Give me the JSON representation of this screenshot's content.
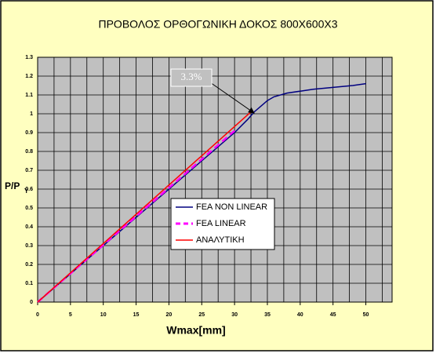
{
  "chart_data": {
    "type": "line",
    "title": "ΠΡΟΒΟΛΟΣ ΟΡΘΟΓΩΝΙΚΗ ΔΟΚΟΣ 800Χ600Χ3",
    "x_label": "Wmax[mm]",
    "y_label": "P/P",
    "y_label_subscript": "Y",
    "annotation": "3.3%",
    "xlim": [
      0,
      54
    ],
    "xticks": [
      0,
      5,
      10,
      15,
      20,
      25,
      30,
      35,
      40,
      45,
      50
    ],
    "xgrid_step": 2.5,
    "ylim": [
      0,
      1.3
    ],
    "yticks": [
      0,
      0.1,
      0.2,
      0.3,
      0.4,
      0.5,
      0.6,
      0.7,
      0.8,
      0.9,
      1,
      1.1,
      1.2,
      1.3
    ],
    "grid": true,
    "legend": "center",
    "series": [
      {
        "name": "FEA NON LINEAR",
        "color": "#000080",
        "dash": false,
        "x": [
          0,
          10,
          20,
          30,
          32,
          33,
          34,
          35,
          36,
          38,
          40,
          42,
          45,
          48,
          50
        ],
        "values": [
          0,
          0.3,
          0.6,
          0.9,
          0.97,
          1.01,
          1.04,
          1.07,
          1.09,
          1.11,
          1.12,
          1.13,
          1.14,
          1.15,
          1.16
        ]
      },
      {
        "name": "FEA LINEAR",
        "color": "#ff00ff",
        "dash": true,
        "x": [
          0,
          30
        ],
        "values": [
          0,
          0.91
        ]
      },
      {
        "name": "ΑΝΑΛΥΤΙΚΗ",
        "color": "#ff0000",
        "dash": false,
        "x": [
          0,
          32.5
        ],
        "values": [
          0,
          1.01
        ]
      }
    ]
  }
}
